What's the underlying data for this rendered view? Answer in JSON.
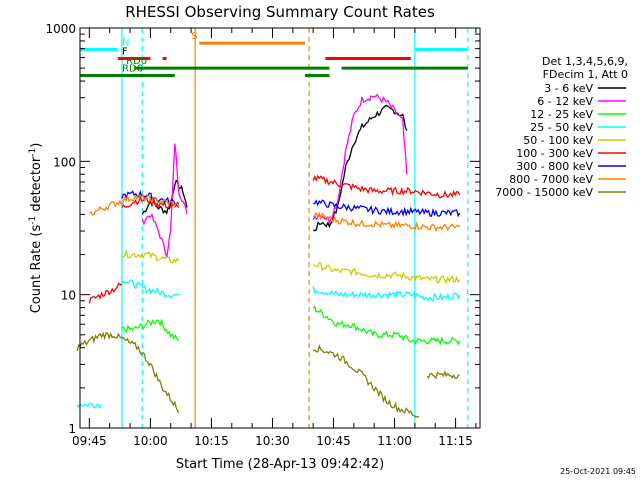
{
  "chart_data": {
    "type": "line",
    "title": "RHESSI Observing Summary Count Rates",
    "xlabel": "Start Time (28-Apr-13 09:42:42)",
    "ylabel": "Count Rate (s^-1 detector^-1)",
    "ylabel_parts": {
      "main": "Count Rate (s",
      "sup": "-1",
      "rest": " detector",
      "sup2": "-1",
      "close": ")"
    },
    "yscale": "log",
    "ylim": [
      1,
      1000
    ],
    "xlim": [
      "09:42:42",
      "11:21:00"
    ],
    "x_ticks": [
      "09:45",
      "10:00",
      "10:15",
      "10:30",
      "10:45",
      "11:00",
      "11:15"
    ],
    "y_ticks": [
      {
        "value": 1,
        "label": "1"
      },
      {
        "value": 10,
        "label": "10"
      },
      {
        "value": 100,
        "label": "100"
      },
      {
        "value": 1000,
        "label": "1000"
      }
    ],
    "grid": false,
    "legend_position": "right",
    "legend_header": [
      "Det 1,3,4,5,6,9,",
      "FDecim 1, Att 0"
    ],
    "series": [
      {
        "name": "3 - 6 keV",
        "color": "#000000",
        "segments": [
          {
            "x": [
              "09:58",
              "10:00",
              "10:02",
              "10:04",
              "10:05",
              "10:06",
              "10:07",
              "10:08",
              "10:09"
            ],
            "y": [
              40,
              50,
              45,
              42,
              48,
              70,
              65,
              60,
              45
            ]
          },
          {
            "x": [
              "10:40",
              "10:42",
              "10:44",
              "10:46",
              "10:48",
              "10:50",
              "10:52",
              "10:55",
              "10:58",
              "11:00",
              "11:02",
              "11:03"
            ],
            "y": [
              30,
              35,
              33,
              45,
              90,
              140,
              180,
              220,
              250,
              240,
              220,
              170
            ]
          }
        ]
      },
      {
        "name": "6 - 12 keV",
        "color": "#ff00ff",
        "segments": [
          {
            "x": [
              "09:58",
              "10:00",
              "10:02",
              "10:04",
              "10:05",
              "10:06",
              "10:07",
              "10:08",
              "10:09"
            ],
            "y": [
              35,
              40,
              30,
              20,
              30,
              140,
              60,
              50,
              40
            ]
          },
          {
            "x": [
              "10:40",
              "10:42",
              "10:44",
              "10:46",
              "10:48",
              "10:50",
              "10:52",
              "10:55",
              "10:58",
              "11:00",
              "11:02",
              "11:03"
            ],
            "y": [
              38,
              40,
              36,
              50,
              120,
              220,
              290,
              310,
              280,
              240,
              200,
              80
            ]
          }
        ]
      },
      {
        "name": "12 - 25 keV",
        "color": "#00ff00",
        "segments": [
          {
            "x": [
              "09:53",
              "09:56",
              "09:59",
              "10:02",
              "10:05",
              "10:07"
            ],
            "y": [
              5.5,
              5.5,
              6,
              6.5,
              5,
              4.5
            ]
          },
          {
            "x": [
              "10:40",
              "10:43",
              "10:46",
              "10:49",
              "10:52",
              "10:55",
              "10:58",
              "11:01",
              "11:04",
              "11:08",
              "11:12",
              "11:16"
            ],
            "y": [
              8,
              7,
              6,
              6,
              5.5,
              5,
              5,
              5,
              4.5,
              4.5,
              4.5,
              4.5
            ]
          }
        ]
      },
      {
        "name": "25 - 50 keV",
        "color": "#00ffff",
        "segments": [
          {
            "x": [
              "09:42",
              "09:48"
            ],
            "y": [
              1.5,
              1.5
            ]
          },
          {
            "x": [
              "09:53",
              "09:56",
              "09:59",
              "10:02",
              "10:05",
              "10:07"
            ],
            "y": [
              13,
              12,
              11,
              10.5,
              10,
              10
            ]
          },
          {
            "x": [
              "10:40",
              "10:43",
              "10:46",
              "10:49",
              "10:52",
              "10:55",
              "10:58",
              "11:01",
              "11:04",
              "11:08",
              "11:12",
              "11:16"
            ],
            "y": [
              11,
              10.5,
              10,
              10,
              10,
              10,
              10,
              10,
              10,
              9.5,
              9.5,
              10
            ]
          }
        ]
      },
      {
        "name": "50 - 100 keV",
        "color": "#cccc00",
        "segments": [
          {
            "x": [
              "09:53",
              "09:56",
              "09:59",
              "10:02",
              "10:05",
              "10:07"
            ],
            "y": [
              20,
              20,
              20,
              19,
              18,
              18
            ]
          },
          {
            "x": [
              "10:40",
              "10:43",
              "10:46",
              "10:49",
              "10:52",
              "10:55",
              "10:58",
              "11:01",
              "11:04",
              "11:08",
              "11:12",
              "11:16"
            ],
            "y": [
              17,
              16,
              15,
              15,
              14.5,
              14,
              14,
              14,
              13.5,
              13,
              13,
              13
            ]
          }
        ]
      },
      {
        "name": "100 - 300 keV",
        "color": "#ff0000",
        "segments": [
          {
            "x": [
              "09:45",
              "09:48",
              "09:51",
              "09:53"
            ],
            "y": [
              9,
              10,
              11,
              12
            ]
          },
          {
            "x": [
              "09:53",
              "09:56",
              "09:59",
              "10:02",
              "10:05",
              "10:07"
            ],
            "y": [
              45,
              50,
              52,
              48,
              46,
              45
            ]
          },
          {
            "x": [
              "10:40",
              "10:43",
              "10:46",
              "10:49",
              "10:52",
              "10:55",
              "10:58",
              "11:01",
              "11:04",
              "11:08",
              "11:12",
              "11:16"
            ],
            "y": [
              75,
              72,
              68,
              65,
              62,
              60,
              60,
              60,
              60,
              58,
              56,
              56
            ]
          }
        ]
      },
      {
        "name": "300 - 800 keV",
        "color": "#0000ff",
        "segments": [
          {
            "x": [
              "09:53",
              "09:56",
              "09:59",
              "10:02",
              "10:05",
              "10:07"
            ],
            "y": [
              55,
              57,
              56,
              52,
              50,
              48
            ]
          },
          {
            "x": [
              "10:40",
              "10:43",
              "10:46",
              "10:49",
              "10:52",
              "10:55",
              "10:58",
              "11:01",
              "11:04",
              "11:08",
              "11:12",
              "11:16"
            ],
            "y": [
              50,
              48,
              46,
              45,
              44,
              43,
              42,
              42,
              42,
              41,
              41,
              41
            ]
          }
        ]
      },
      {
        "name": "800 - 7000 keV",
        "color": "#ff8000",
        "segments": [
          {
            "x": [
              "09:45",
              "09:48",
              "09:51",
              "09:54",
              "09:57",
              "10:00",
              "10:03",
              "10:06",
              "10:07"
            ],
            "y": [
              40,
              44,
              48,
              52,
              54,
              52,
              50,
              48,
              46
            ]
          },
          {
            "x": [
              "10:40",
              "10:43",
              "10:46",
              "10:49",
              "10:52",
              "10:55",
              "10:58",
              "11:01",
              "11:04",
              "11:08",
              "11:12",
              "11:16"
            ],
            "y": [
              40,
              38,
              36,
              35,
              34,
              34,
              33,
              33,
              33,
              32,
              32,
              32
            ]
          }
        ]
      },
      {
        "name": "7000 - 15000 keV",
        "color": "#808000",
        "segments": [
          {
            "x": [
              "09:42",
              "09:45",
              "09:48",
              "09:51",
              "09:54",
              "09:57",
              "10:00",
              "10:03",
              "10:06",
              "10:07"
            ],
            "y": [
              4,
              4.5,
              5,
              5,
              4.5,
              4,
              3,
              2,
              1.5,
              1.3
            ]
          },
          {
            "x": [
              "10:40",
              "10:43",
              "10:46",
              "10:49",
              "10:52",
              "10:55",
              "10:58",
              "11:01",
              "11:04",
              "11:06"
            ],
            "y": [
              4,
              3.8,
              3.5,
              3,
              2.5,
              2,
              1.6,
              1.4,
              1.3,
              1.2
            ]
          },
          {
            "x": [
              "11:08",
              "11:12",
              "11:16"
            ],
            "y": [
              2.5,
              2.5,
              2.5
            ]
          }
        ]
      }
    ],
    "flag_bars": [
      {
        "label": "N",
        "color": "#00ffff",
        "label_color": "#00ffff",
        "level": 690,
        "ranges": [
          [
            "09:42:42",
            "09:52"
          ],
          [
            "11:05",
            "11:18"
          ]
        ]
      },
      {
        "label": "S",
        "color": "#ff8000",
        "label_color": "#ff8000",
        "level": 770,
        "ranges": [
          [
            "10:12",
            "10:38"
          ]
        ]
      },
      {
        "label": "F",
        "color": "#ff0000",
        "label_color": "#000000",
        "level": 590,
        "ranges": [
          [
            "09:52",
            "10:00"
          ],
          [
            "10:03",
            "10:04"
          ],
          [
            "10:43",
            "11:04"
          ]
        ]
      },
      {
        "label": "RD0",
        "color": "#008000",
        "label_color": "#008000",
        "level": 500,
        "ranges": [
          [
            "09:56",
            "10:38"
          ],
          [
            "10:38",
            "10:44"
          ],
          [
            "10:47",
            "11:18"
          ]
        ]
      },
      {
        "label": "RD6",
        "color": "#008000",
        "label_color": "#008000",
        "level": 440,
        "ranges": [
          [
            "09:42:42",
            "10:06"
          ],
          [
            "10:38",
            "10:44"
          ]
        ]
      }
    ],
    "vertical_lines": [
      {
        "time": "09:53",
        "color": "#00ffff",
        "style": "solid"
      },
      {
        "time": "09:58",
        "color": "#00ffff",
        "style": "dashed"
      },
      {
        "time": "10:11",
        "color": "#ff8000",
        "style": "solid"
      },
      {
        "time": "10:39",
        "color": "#ff8000",
        "style": "dashed"
      },
      {
        "time": "11:05",
        "color": "#00ffff",
        "style": "solid"
      },
      {
        "time": "11:18",
        "color": "#00ffff",
        "style": "dashed"
      }
    ]
  },
  "footer": {
    "timestamp": "25-Oct-2021 09:45"
  }
}
